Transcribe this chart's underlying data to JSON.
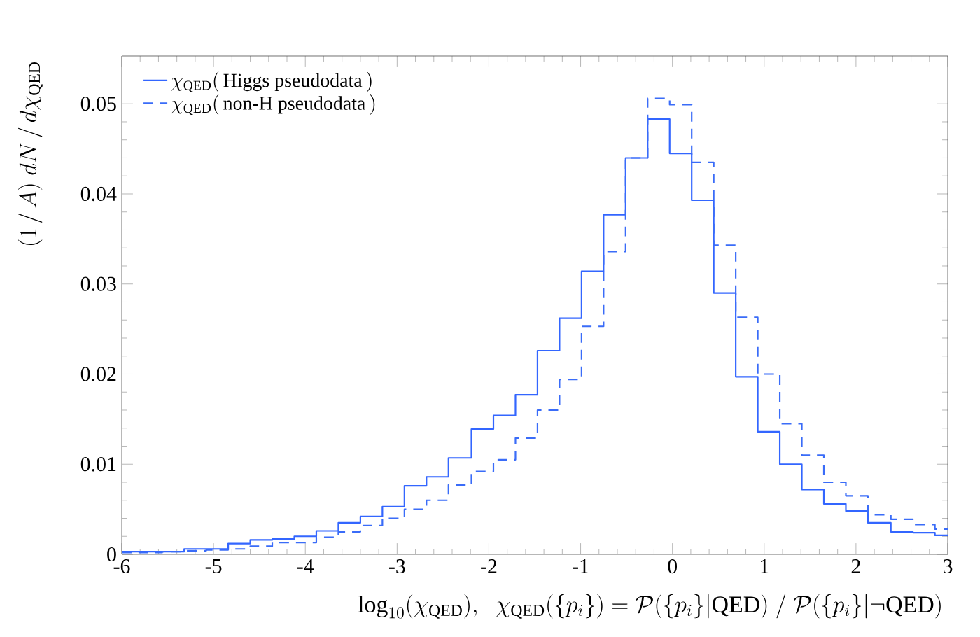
{
  "chart_data": {
    "type": "histogram",
    "xlabel": "\\log_{10}(\\chi_{\\mathrm{QED}}),\\;\\; \\chi_{\\mathrm{QED}}(\\{p_i\\}) = \\mathcal{P}(\\{p_i\\}|\\mathrm{QED})\\;/\\;\\mathcal{P}(\\{p_i\\}|\\neg\\mathrm{QED})",
    "ylabel": "(1\\,/\\,A)\\;dN\\,/\\,d\\chi_{\\mathrm{QED}}",
    "bins": [
      -6,
      -5.8,
      -5.56,
      -5.32,
      -5.08,
      -4.84,
      -4.6,
      -4.36,
      -4.12,
      -3.88,
      -3.64,
      -3.4,
      -3.16,
      -2.92,
      -2.68,
      -2.44,
      -2.19,
      -1.95,
      -1.71,
      -1.47,
      -1.23,
      -0.99,
      -0.75,
      -0.51,
      -0.27,
      -0.03,
      0.21,
      0.45,
      0.69,
      0.93,
      1.17,
      1.41,
      1.65,
      1.89,
      2.13,
      2.38,
      2.62,
      2.86,
      3
    ],
    "series": [
      {
        "name": "\\chi_{\\mathrm{QED}}(\\,\\mathrm{Higgs\\ pseudodata}\\,)",
        "color": "#3366ff",
        "line_style": "solid",
        "values": [
          0.0003,
          0.0003,
          0.0003,
          0.0006,
          0.0006,
          0.0012,
          0.0016,
          0.0017,
          0.002,
          0.0026,
          0.0035,
          0.0042,
          0.0053,
          0.0076,
          0.0086,
          0.0107,
          0.0139,
          0.0154,
          0.0177,
          0.0226,
          0.0262,
          0.0314,
          0.0377,
          0.044,
          0.0483,
          0.0445,
          0.0393,
          0.029,
          0.0197,
          0.0136,
          0.01,
          0.0072,
          0.0056,
          0.0048,
          0.0035,
          0.0025,
          0.0024,
          0.0021
        ]
      },
      {
        "name": "\\chi_{\\mathrm{QED}}(\\,\\mathrm{non\\text{-}H\\ pseudodata}\\,)",
        "color": "#3a6cf8",
        "line_style": "dashed",
        "values": [
          0.0002,
          0.0002,
          0.0003,
          0.0004,
          0.0005,
          0.0006,
          0.0009,
          0.0013,
          0.0013,
          0.0019,
          0.0025,
          0.0032,
          0.004,
          0.005,
          0.006,
          0.0077,
          0.0092,
          0.0105,
          0.0129,
          0.016,
          0.0194,
          0.0253,
          0.0336,
          0.044,
          0.0506,
          0.0499,
          0.0435,
          0.0343,
          0.0263,
          0.02,
          0.0145,
          0.011,
          0.008,
          0.0065,
          0.0044,
          0.0039,
          0.0033,
          0.0028
        ]
      }
    ],
    "xlim": [
      -6,
      3
    ],
    "xticks": [
      -6,
      -5,
      -4,
      -3,
      -2,
      -1,
      0,
      1,
      2,
      3
    ],
    "ylim": [
      0,
      0.0553
    ],
    "yticks": [
      0,
      0.01,
      0.02,
      0.03,
      0.04,
      0.05
    ],
    "legend": "top left",
    "grid": false
  }
}
